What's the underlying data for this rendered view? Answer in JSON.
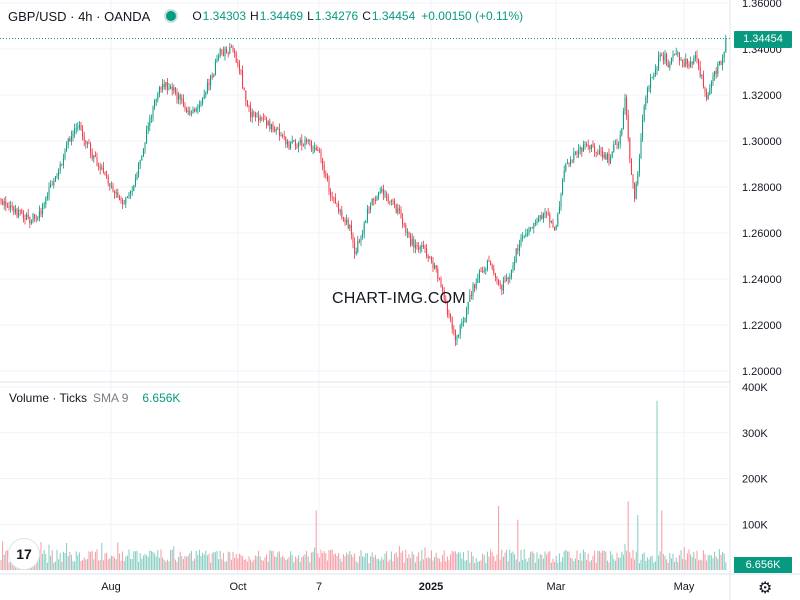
{
  "legend": {
    "symbol": "GBP/USD · 4h · OANDA",
    "open_label": "O",
    "open": "1.34303",
    "high_label": "H",
    "high": "1.34469",
    "low_label": "L",
    "low": "1.34276",
    "close_label": "C",
    "close": "1.34454",
    "change": "+0.00150 (+0.11%)"
  },
  "volume_legend": {
    "label": "Volume · Ticks",
    "sma": "SMA 9",
    "value": "6.656K"
  },
  "watermark": "CHART-IMG.COM",
  "last_price_badge": "1.34454",
  "volume_badge": "6.656K",
  "colors": {
    "up": "#089981",
    "down": "#f23645",
    "grid": "#f0f3fa",
    "axis_text": "#131722"
  },
  "chart_data": [
    {
      "type": "candlestick",
      "interval": "4h",
      "y_ticks": [
        "1.36000",
        "1.34000",
        "1.32000",
        "1.30000",
        "1.28000",
        "1.26000",
        "1.24000",
        "1.22000",
        "1.20000"
      ],
      "ylim": [
        1.2,
        1.36
      ],
      "x_ticks": [
        "Aug",
        "Oct",
        "7",
        "2025",
        "Mar",
        "May"
      ],
      "last_price": 1.34454,
      "path": [
        [
          0,
          1.275
        ],
        [
          10,
          1.272
        ],
        [
          20,
          1.268
        ],
        [
          30,
          1.266
        ],
        [
          40,
          1.268
        ],
        [
          50,
          1.28
        ],
        [
          60,
          1.288
        ],
        [
          70,
          1.302
        ],
        [
          80,
          1.306
        ],
        [
          90,
          1.296
        ],
        [
          100,
          1.288
        ],
        [
          110,
          1.282
        ],
        [
          120,
          1.272
        ],
        [
          130,
          1.276
        ],
        [
          140,
          1.29
        ],
        [
          150,
          1.31
        ],
        [
          160,
          1.324
        ],
        [
          170,
          1.324
        ],
        [
          180,
          1.318
        ],
        [
          190,
          1.312
        ],
        [
          200,
          1.316
        ],
        [
          210,
          1.326
        ],
        [
          220,
          1.338
        ],
        [
          230,
          1.34
        ],
        [
          240,
          1.332
        ],
        [
          245,
          1.318
        ],
        [
          250,
          1.312
        ],
        [
          260,
          1.31
        ],
        [
          270,
          1.306
        ],
        [
          280,
          1.304
        ],
        [
          290,
          1.298
        ],
        [
          300,
          1.3
        ],
        [
          310,
          1.298
        ],
        [
          320,
          1.296
        ],
        [
          325,
          1.286
        ],
        [
          330,
          1.278
        ],
        [
          340,
          1.268
        ],
        [
          350,
          1.262
        ],
        [
          355,
          1.252
        ],
        [
          360,
          1.258
        ],
        [
          370,
          1.272
        ],
        [
          380,
          1.278
        ],
        [
          390,
          1.274
        ],
        [
          400,
          1.268
        ],
        [
          410,
          1.256
        ],
        [
          420,
          1.254
        ],
        [
          430,
          1.25
        ],
        [
          440,
          1.238
        ],
        [
          450,
          1.222
        ],
        [
          455,
          1.214
        ],
        [
          460,
          1.218
        ],
        [
          465,
          1.224
        ],
        [
          470,
          1.232
        ],
        [
          480,
          1.244
        ],
        [
          490,
          1.248
        ],
        [
          495,
          1.24
        ],
        [
          500,
          1.236
        ],
        [
          510,
          1.24
        ],
        [
          515,
          1.25
        ],
        [
          520,
          1.256
        ],
        [
          530,
          1.262
        ],
        [
          540,
          1.266
        ],
        [
          545,
          1.27
        ],
        [
          555,
          1.262
        ],
        [
          560,
          1.274
        ],
        [
          565,
          1.288
        ],
        [
          570,
          1.292
        ],
        [
          580,
          1.296
        ],
        [
          590,
          1.298
        ],
        [
          600,
          1.295
        ],
        [
          610,
          1.292
        ],
        [
          615,
          1.298
        ],
        [
          620,
          1.3
        ],
        [
          625,
          1.32
        ],
        [
          630,
          1.29
        ],
        [
          635,
          1.275
        ],
        [
          640,
          1.296
        ],
        [
          645,
          1.318
        ],
        [
          650,
          1.326
        ],
        [
          655,
          1.33
        ],
        [
          660,
          1.338
        ],
        [
          665,
          1.336
        ],
        [
          670,
          1.332
        ],
        [
          675,
          1.34
        ],
        [
          680,
          1.336
        ],
        [
          690,
          1.332
        ],
        [
          695,
          1.336
        ],
        [
          700,
          1.33
        ],
        [
          705,
          1.322
        ],
        [
          708,
          1.318
        ],
        [
          712,
          1.326
        ],
        [
          716,
          1.33
        ],
        [
          722,
          1.336
        ],
        [
          727,
          1.345
        ]
      ],
      "volume": {
        "y_ticks": [
          "400K",
          "300K",
          "200K",
          "100K"
        ],
        "ylim": [
          0,
          400000
        ],
        "spikes": [
          [
            118,
            60000
          ],
          [
            316,
            130000
          ],
          [
            498,
            140000
          ],
          [
            518,
            110000
          ],
          [
            628,
            150000
          ],
          [
            638,
            120000
          ],
          [
            657,
            370000
          ],
          [
            662,
            130000
          ]
        ]
      }
    }
  ]
}
